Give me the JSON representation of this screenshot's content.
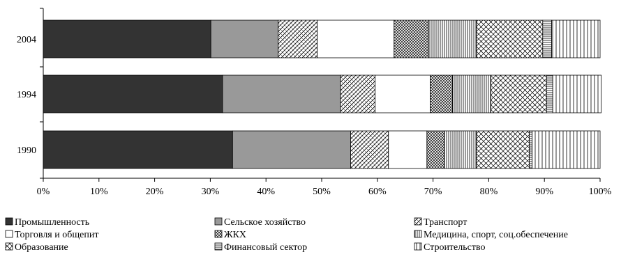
{
  "chart_data": {
    "type": "bar",
    "orientation": "horizontal",
    "stacked": "percent",
    "categories": [
      "2004",
      "1994",
      "1990"
    ],
    "xlim": [
      0,
      100
    ],
    "x_ticks": [
      "0%",
      "10%",
      "20%",
      "30%",
      "40%",
      "50%",
      "60%",
      "70%",
      "80%",
      "90%",
      "100%"
    ],
    "grid": false,
    "legend_position": "bottom",
    "series": [
      {
        "name": "Промышленность",
        "values": [
          30.1,
          32.2,
          34.0
        ],
        "color": "#333333",
        "pattern": "solid"
      },
      {
        "name": "Сельское хозяйство",
        "values": [
          12.1,
          21.2,
          21.2
        ],
        "color": "#999999",
        "pattern": "solid"
      },
      {
        "name": "Транспорт",
        "values": [
          7.0,
          6.2,
          6.8
        ],
        "color": "#000000",
        "pattern": "diagonal-crosshatch"
      },
      {
        "name": "Торговля и общепит",
        "values": [
          13.8,
          9.9,
          6.9
        ],
        "color": "#ffffff",
        "pattern": "solid"
      },
      {
        "name": "ЖКХ",
        "values": [
          6.2,
          4.0,
          3.1
        ],
        "color": "#000000",
        "pattern": "dense-crosshatch"
      },
      {
        "name": "Медицина, спорт, соц.обеспечение",
        "values": [
          8.6,
          6.9,
          5.8
        ],
        "color": "#000000",
        "pattern": "vertical-lines"
      },
      {
        "name": "Образование",
        "values": [
          11.9,
          10.0,
          9.5
        ],
        "color": "#000000",
        "pattern": "diamond-grid"
      },
      {
        "name": "Финансовый сектор",
        "values": [
          1.6,
          1.1,
          0.5
        ],
        "color": "#000000",
        "pattern": "horizontal-lines"
      },
      {
        "name": "Строительство",
        "values": [
          8.7,
          8.7,
          12.2
        ],
        "color": "#000000",
        "pattern": "sparse-vertical-lines"
      }
    ]
  }
}
